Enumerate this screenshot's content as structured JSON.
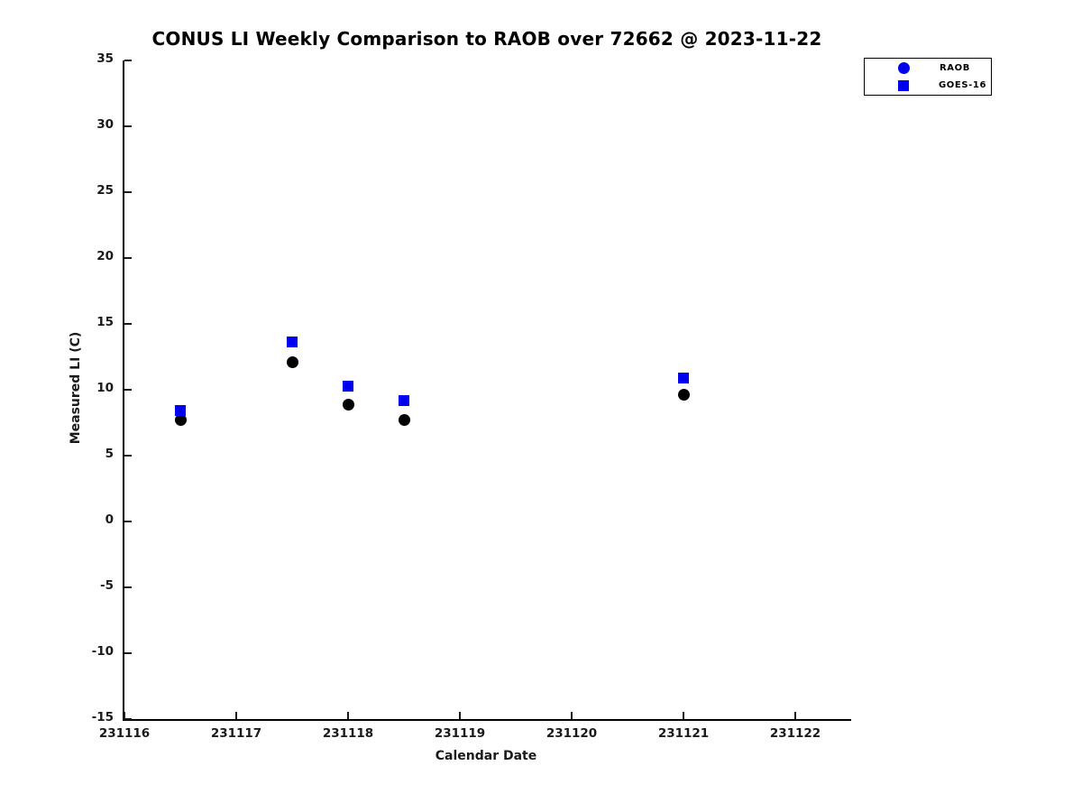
{
  "chart_data": {
    "type": "scatter",
    "title": "CONUS LI Weekly Comparison to RAOB over 72662 @ 2023-11-22",
    "xlabel": "Calendar Date",
    "ylabel": "Measured LI (C)",
    "xlim": [
      231116,
      231122.5
    ],
    "ylim": [
      -15,
      35
    ],
    "xticks": [
      231116,
      231117,
      231118,
      231119,
      231120,
      231121,
      231122
    ],
    "yticks": [
      35,
      30,
      25,
      20,
      15,
      10,
      5,
      0,
      -5,
      -10,
      -15
    ],
    "grid": false,
    "legend_position": "top-right",
    "x": [
      231116.5,
      231117.5,
      231118.0,
      231118.5,
      231121.0
    ],
    "series": [
      {
        "name": "RAOB",
        "marker": "circle",
        "plot_color": "#000000",
        "legend_color": "#0000ee",
        "values": [
          7.7,
          12.1,
          8.9,
          7.7,
          9.6
        ]
      },
      {
        "name": "GOES-16",
        "marker": "square",
        "plot_color": "#0000ee",
        "legend_color": "#0000ee",
        "values": [
          8.4,
          13.6,
          10.3,
          9.2,
          10.9
        ]
      }
    ]
  },
  "legend": {
    "items": [
      {
        "label": "RAOB"
      },
      {
        "label": "GOES-16"
      }
    ]
  },
  "colors": {
    "marker_blue": "#0000ee",
    "marker_black": "#000000",
    "axis": "#000000",
    "tick_text": "#1a1a1a"
  }
}
